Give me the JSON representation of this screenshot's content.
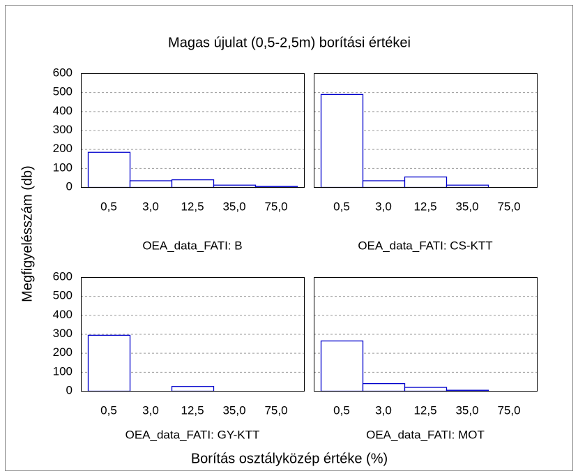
{
  "title": "Magas újulat (0,5-2,5m) borítási értékei",
  "ylabel": "Megfigyelésszám (db)",
  "xlabel": "Borítás osztályközép értéke (%)",
  "chart_data": [
    {
      "type": "bar",
      "subtitle": "OEA_data_FATI: B",
      "categories": [
        "0,5",
        "3,0",
        "12,5",
        "35,0",
        "75,0"
      ],
      "values": [
        185,
        35,
        40,
        12,
        5
      ],
      "color": "#0000cc",
      "ylim": [
        0,
        600
      ],
      "yticks": [
        0,
        100,
        200,
        300,
        400,
        500,
        600
      ],
      "grid": true
    },
    {
      "type": "bar",
      "subtitle": "OEA_data_FATI: CS-KTT",
      "categories": [
        "0,5",
        "3,0",
        "12,5",
        "35,0",
        "75,0"
      ],
      "values": [
        490,
        35,
        55,
        12,
        0
      ],
      "color": "#0000cc",
      "ylim": [
        0,
        600
      ],
      "yticks": [
        0,
        100,
        200,
        300,
        400,
        500,
        600
      ],
      "grid": true
    },
    {
      "type": "bar",
      "subtitle": "OEA_data_FATI: GY-KTT",
      "categories": [
        "0,5",
        "3,0",
        "12,5",
        "35,0",
        "75,0"
      ],
      "values": [
        295,
        0,
        25,
        0,
        0
      ],
      "color": "#0000cc",
      "ylim": [
        0,
        600
      ],
      "yticks": [
        0,
        100,
        200,
        300,
        400,
        500,
        600
      ],
      "grid": true
    },
    {
      "type": "bar",
      "subtitle": "OEA_data_FATI: MOT",
      "categories": [
        "0,5",
        "3,0",
        "12,5",
        "35,0",
        "75,0"
      ],
      "values": [
        265,
        40,
        20,
        5,
        0
      ],
      "color": "#0000cc",
      "ylim": [
        0,
        600
      ],
      "yticks": [
        0,
        100,
        200,
        300,
        400,
        500,
        600
      ],
      "grid": true
    }
  ]
}
